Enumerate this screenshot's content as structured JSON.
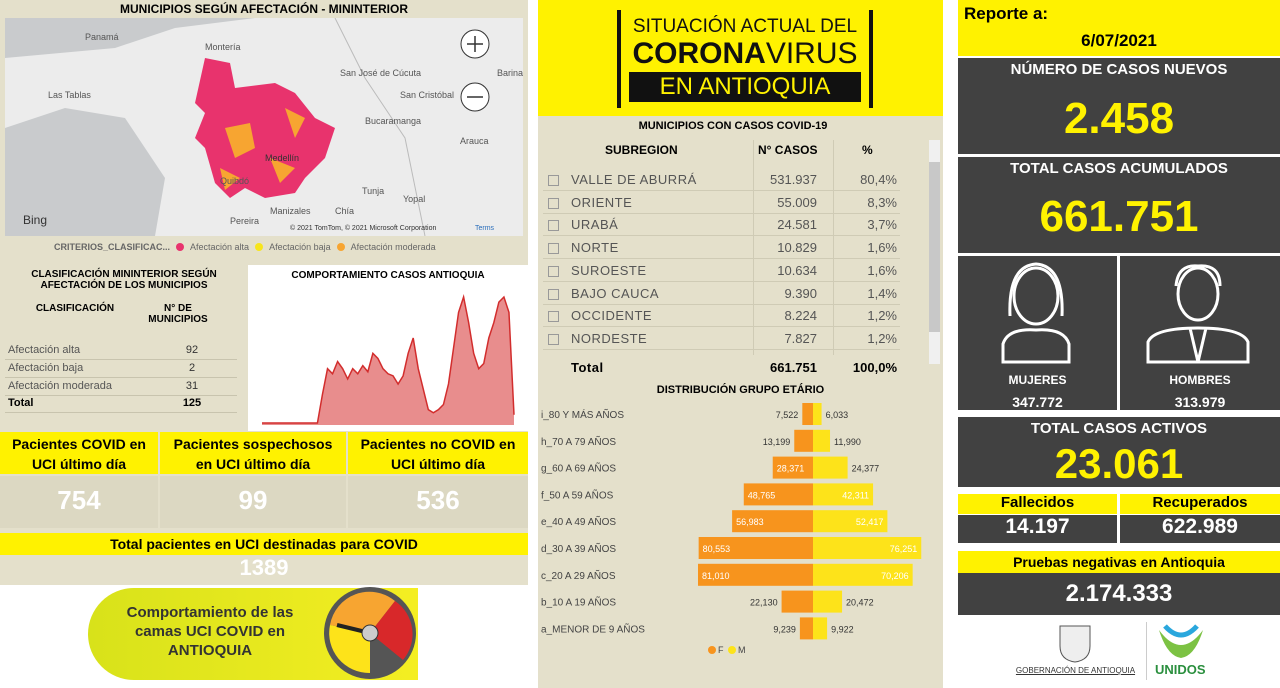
{
  "map": {
    "title": "MUNICIPIOS SEGÚN AFECTACIÓN - MININTERIOR",
    "places": [
      "Panamá",
      "Montería",
      "San José de Cúcuta",
      "Barina",
      "Las Tablas",
      "Bucaramanga",
      "San Cristóbal",
      "Arauca",
      "Medellín",
      "Quibdó",
      "Tunja",
      "Yopal",
      "Pereira",
      "Manizales",
      "Chía"
    ],
    "provider": "Bing",
    "attribution": "© 2021 TomTom, © 2021 Microsoft Corporation",
    "terms": "Terms",
    "legend_title": "CRITERIOS_CLASIFICAC...",
    "legend": [
      {
        "name": "Afectación alta",
        "color": "#e8336d"
      },
      {
        "name": "Afectación baja",
        "color": "#f7e51b"
      },
      {
        "name": "Afectación moderada",
        "color": "#f7a531"
      }
    ]
  },
  "classification": {
    "title": "CLASIFICACIÓN MININTERIOR SEGÚN AFECTACIÓN DE LOS MUNICIPIOS",
    "header": [
      "CLASIFICACIÓN",
      "N° DE MUNICIPIOS"
    ],
    "rows": [
      [
        "Afectación alta",
        "92"
      ],
      [
        "Afectación baja",
        "2"
      ],
      [
        "Afectación moderada",
        "31"
      ]
    ],
    "total": [
      "Total",
      "125"
    ]
  },
  "trend": {
    "type": "area",
    "title": "COMPORTAMIENTO CASOS ANTIOQUIA",
    "color": "#e88d8d",
    "line_color": "#d22d2d",
    "values": [
      2,
      2,
      2,
      2,
      2,
      2,
      2,
      2,
      2,
      2,
      2,
      2,
      30,
      55,
      50,
      62,
      55,
      45,
      55,
      50,
      58,
      52,
      70,
      65,
      55,
      50,
      48,
      40,
      48,
      70,
      85,
      55,
      35,
      15,
      12,
      15,
      20,
      40,
      75,
      110,
      125,
      100,
      70,
      55,
      60,
      85,
      100,
      120,
      125,
      110,
      10
    ]
  },
  "uci": {
    "cards": [
      {
        "label": "Pacientes COVID en UCI último día",
        "value": "754"
      },
      {
        "label": "Pacientes sospechosos en UCI último día",
        "value": "99"
      },
      {
        "label": "Pacientes no COVID en UCI último día",
        "value": "536"
      }
    ],
    "total_label": "Total pacientes en UCI destinadas para COVID",
    "total_value": "1389"
  },
  "banner": "Comportamiento de las camas UCI COVID en ANTIOQUIA",
  "logo": {
    "line1": "SITUACIÓN ACTUAL DEL",
    "corona": "CORONA",
    "virus": "VIRUS",
    "line3": "EN ANTIOQUIA"
  },
  "subregions": {
    "title": "MUNICIPIOS CON CASOS COVID-19",
    "header": [
      "SUBREGION",
      "N° CASOS",
      "%"
    ],
    "rows": [
      [
        "VALLE DE ABURRÁ",
        "531.937",
        "80,4%"
      ],
      [
        "ORIENTE",
        "55.009",
        "8,3%"
      ],
      [
        "URABÁ",
        "24.581",
        "3,7%"
      ],
      [
        "NORTE",
        "10.829",
        "1,6%"
      ],
      [
        "SUROESTE",
        "10.634",
        "1,6%"
      ],
      [
        "BAJO CAUCA",
        "9.390",
        "1,4%"
      ],
      [
        "OCCIDENTE",
        "8.224",
        "1,2%"
      ],
      [
        "NORDESTE",
        "7.827",
        "1,2%"
      ]
    ],
    "total": [
      "Total",
      "661.751",
      "100,0%"
    ]
  },
  "age": {
    "type": "bar",
    "title": "DISTRIBUCIÓN GRUPO ETÁRIO",
    "categories": [
      "i_80 Y MÁS AÑOS",
      "h_70 A 79 AÑOS",
      "g_60 A 69 AÑOS",
      "f_50 A 59 AÑOS",
      "e_40 A 49 AÑOS",
      "d_30 A 39 AÑOS",
      "c_20 A 29 AÑOS",
      "b_10 A 19 AÑOS",
      "a_MENOR DE 9 AÑOS"
    ],
    "series": [
      {
        "name": "F",
        "color": "#f7941d",
        "values": [
          7522,
          13199,
          28371,
          48765,
          56983,
          80553,
          81010,
          22130,
          9239
        ],
        "value_labels": [
          "7,522",
          "13,199",
          "28,371",
          "48,765",
          "56,983",
          "80,553",
          "81,010",
          "22,130",
          "9,239"
        ]
      },
      {
        "name": "M",
        "color": "#fde31a",
        "values": [
          6033,
          11990,
          24377,
          42311,
          52417,
          76251,
          70206,
          20472,
          9922
        ],
        "value_labels": [
          "6,033",
          "11,990",
          "24,377",
          "42,311",
          "52,417",
          "76,251",
          "70,206",
          "20,472",
          "9,922"
        ]
      }
    ]
  },
  "report": {
    "label": "Reporte a:",
    "date": "6/07/2021",
    "new_cases_label": "NÚMERO DE CASOS NUEVOS",
    "new_cases": "2.458",
    "total_label": "TOTAL CASOS ACUMULADOS",
    "total": "661.751",
    "women_label": "MUJERES",
    "women": "347.772",
    "men_label": "HOMBRES",
    "men": "313.979",
    "active_label": "TOTAL CASOS ACTIVOS",
    "active": "23.061",
    "deaths_label": "Fallecidos",
    "deaths": "14.197",
    "recovered_label": "Recuperados",
    "recovered": "622.989",
    "negative_label": "Pruebas negativas en Antioquia",
    "negative": "2.174.333",
    "gov": "GOBERNACIÓN DE ANTIOQUIA",
    "unidos": "UNIDOS"
  }
}
